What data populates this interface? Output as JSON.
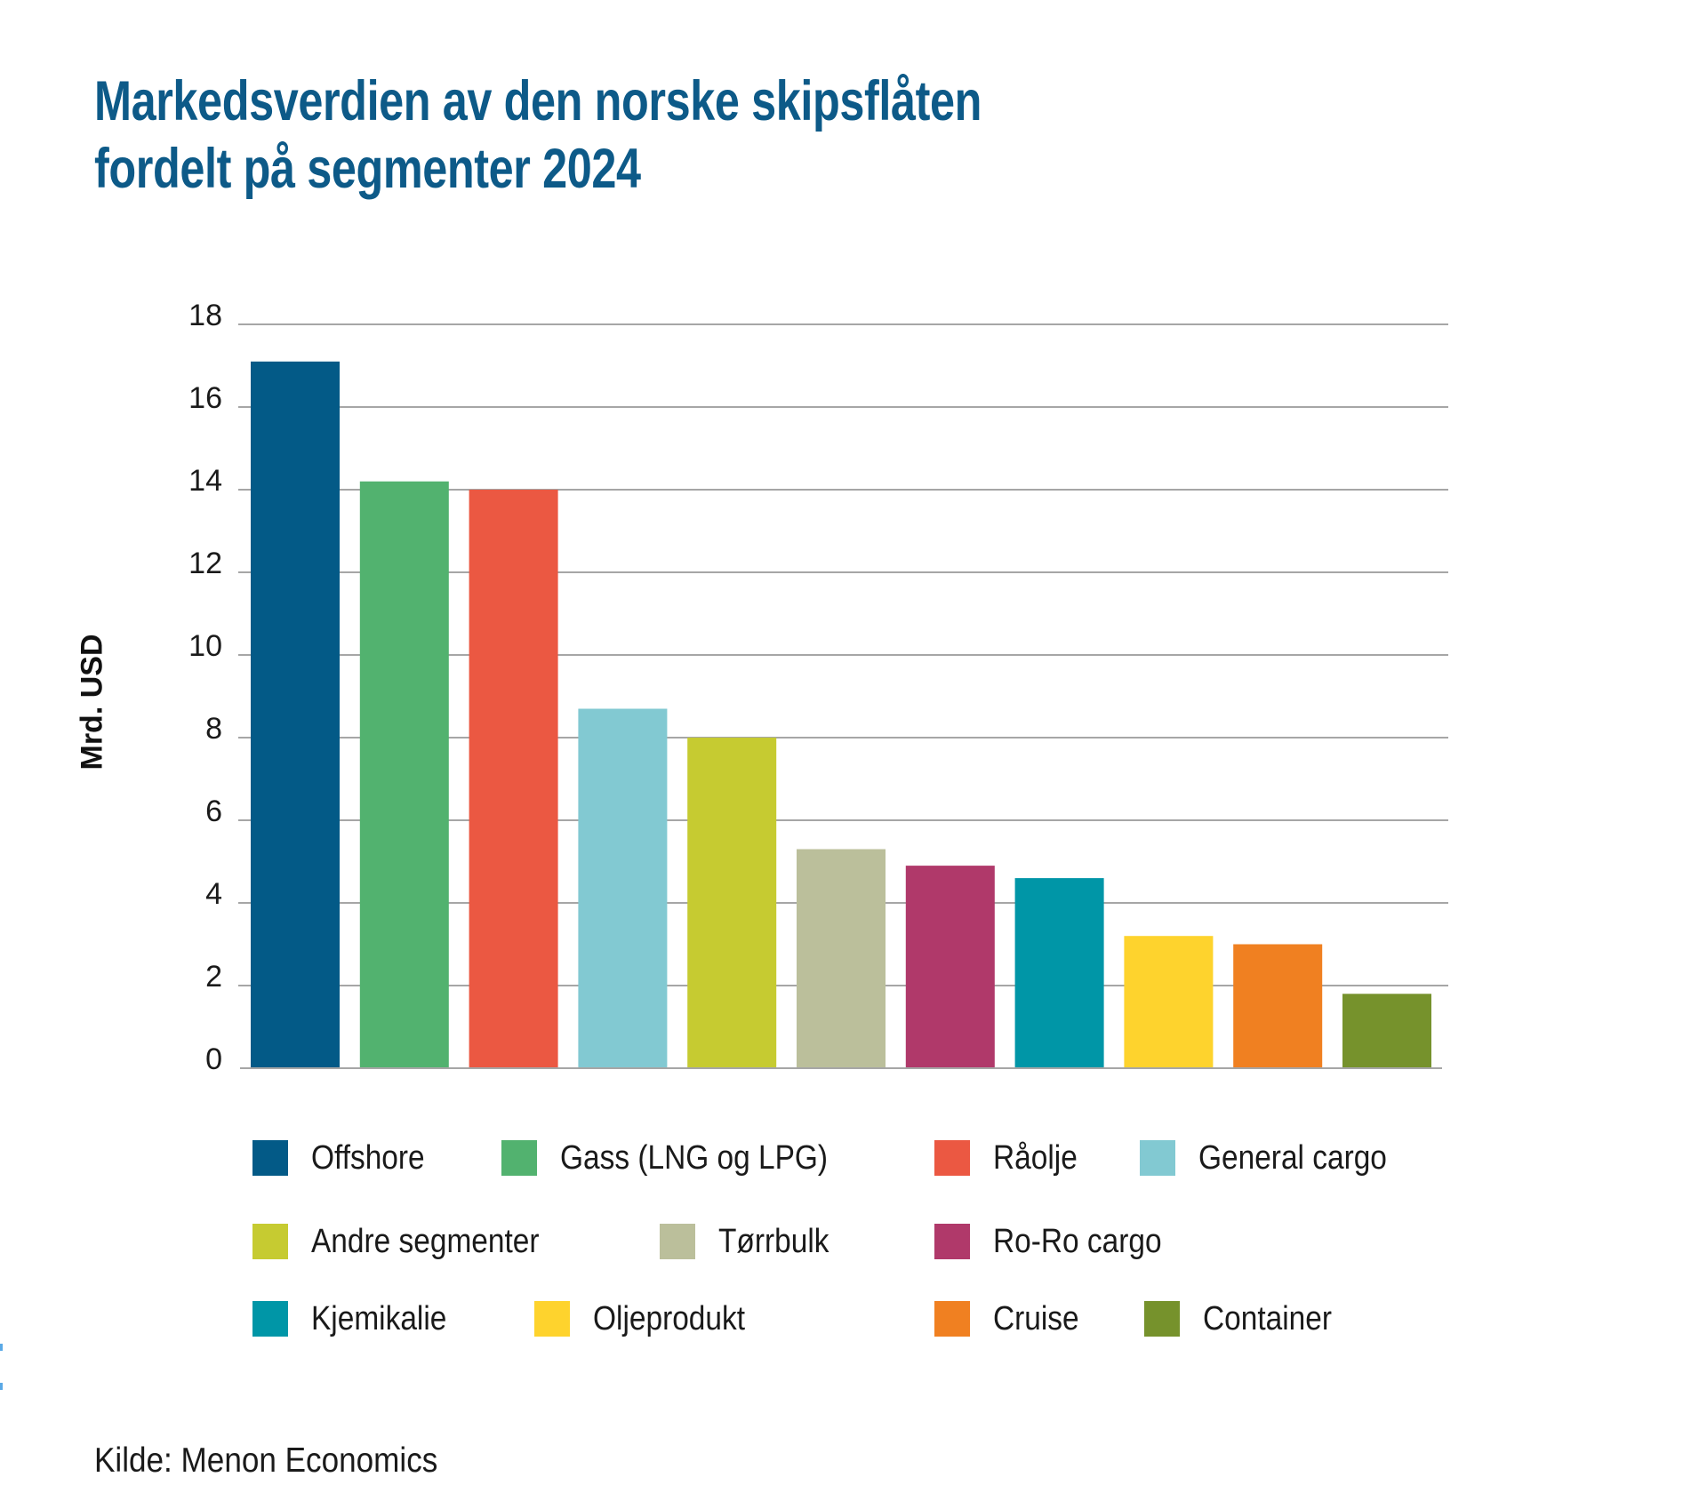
{
  "header": {
    "title_line1": "Markedsverdien av den norske skipsflåten",
    "title_line2": "fordelt på segmenter 2024"
  },
  "source": "Kilde: Menon Economics",
  "chart_data": {
    "type": "bar",
    "title": "Markedsverdien av den norske skipsflåten fordelt på segmenter 2024",
    "xlabel": "",
    "ylabel": "Mrd. USD",
    "ylim": [
      0,
      18
    ],
    "yticks": [
      0,
      2,
      4,
      6,
      8,
      10,
      12,
      14,
      16,
      18
    ],
    "grid": true,
    "legend_position": "bottom",
    "categories": [
      "Offshore",
      "Gass (LNG og LPG)",
      "Råolje",
      "General cargo",
      "Andre segmenter",
      "Tørrbulk",
      "Ro-Ro cargo",
      "Kjemikalie",
      "Oljeprodukt",
      "Cruise",
      "Container"
    ],
    "values": [
      17.1,
      14.2,
      14.0,
      8.7,
      8.0,
      5.3,
      4.9,
      4.6,
      3.2,
      3.0,
      1.8
    ],
    "colors": [
      "#035a87",
      "#52b26f",
      "#eb5842",
      "#82c9d2",
      "#c6cb31",
      "#bbbf9b",
      "#b0396a",
      "#0096a7",
      "#fed32d",
      "#f08021",
      "#76922c"
    ]
  },
  "legend": {
    "rows": [
      [
        "Offshore",
        "Gass (LNG og LPG)",
        "Råolje",
        "General cargo"
      ],
      [
        "Andre segmenter",
        "Tørrbulk",
        "Ro-Ro cargo"
      ],
      [
        "Kjemikalie",
        "Oljeprodukt",
        "Cruise",
        "Container"
      ]
    ]
  }
}
